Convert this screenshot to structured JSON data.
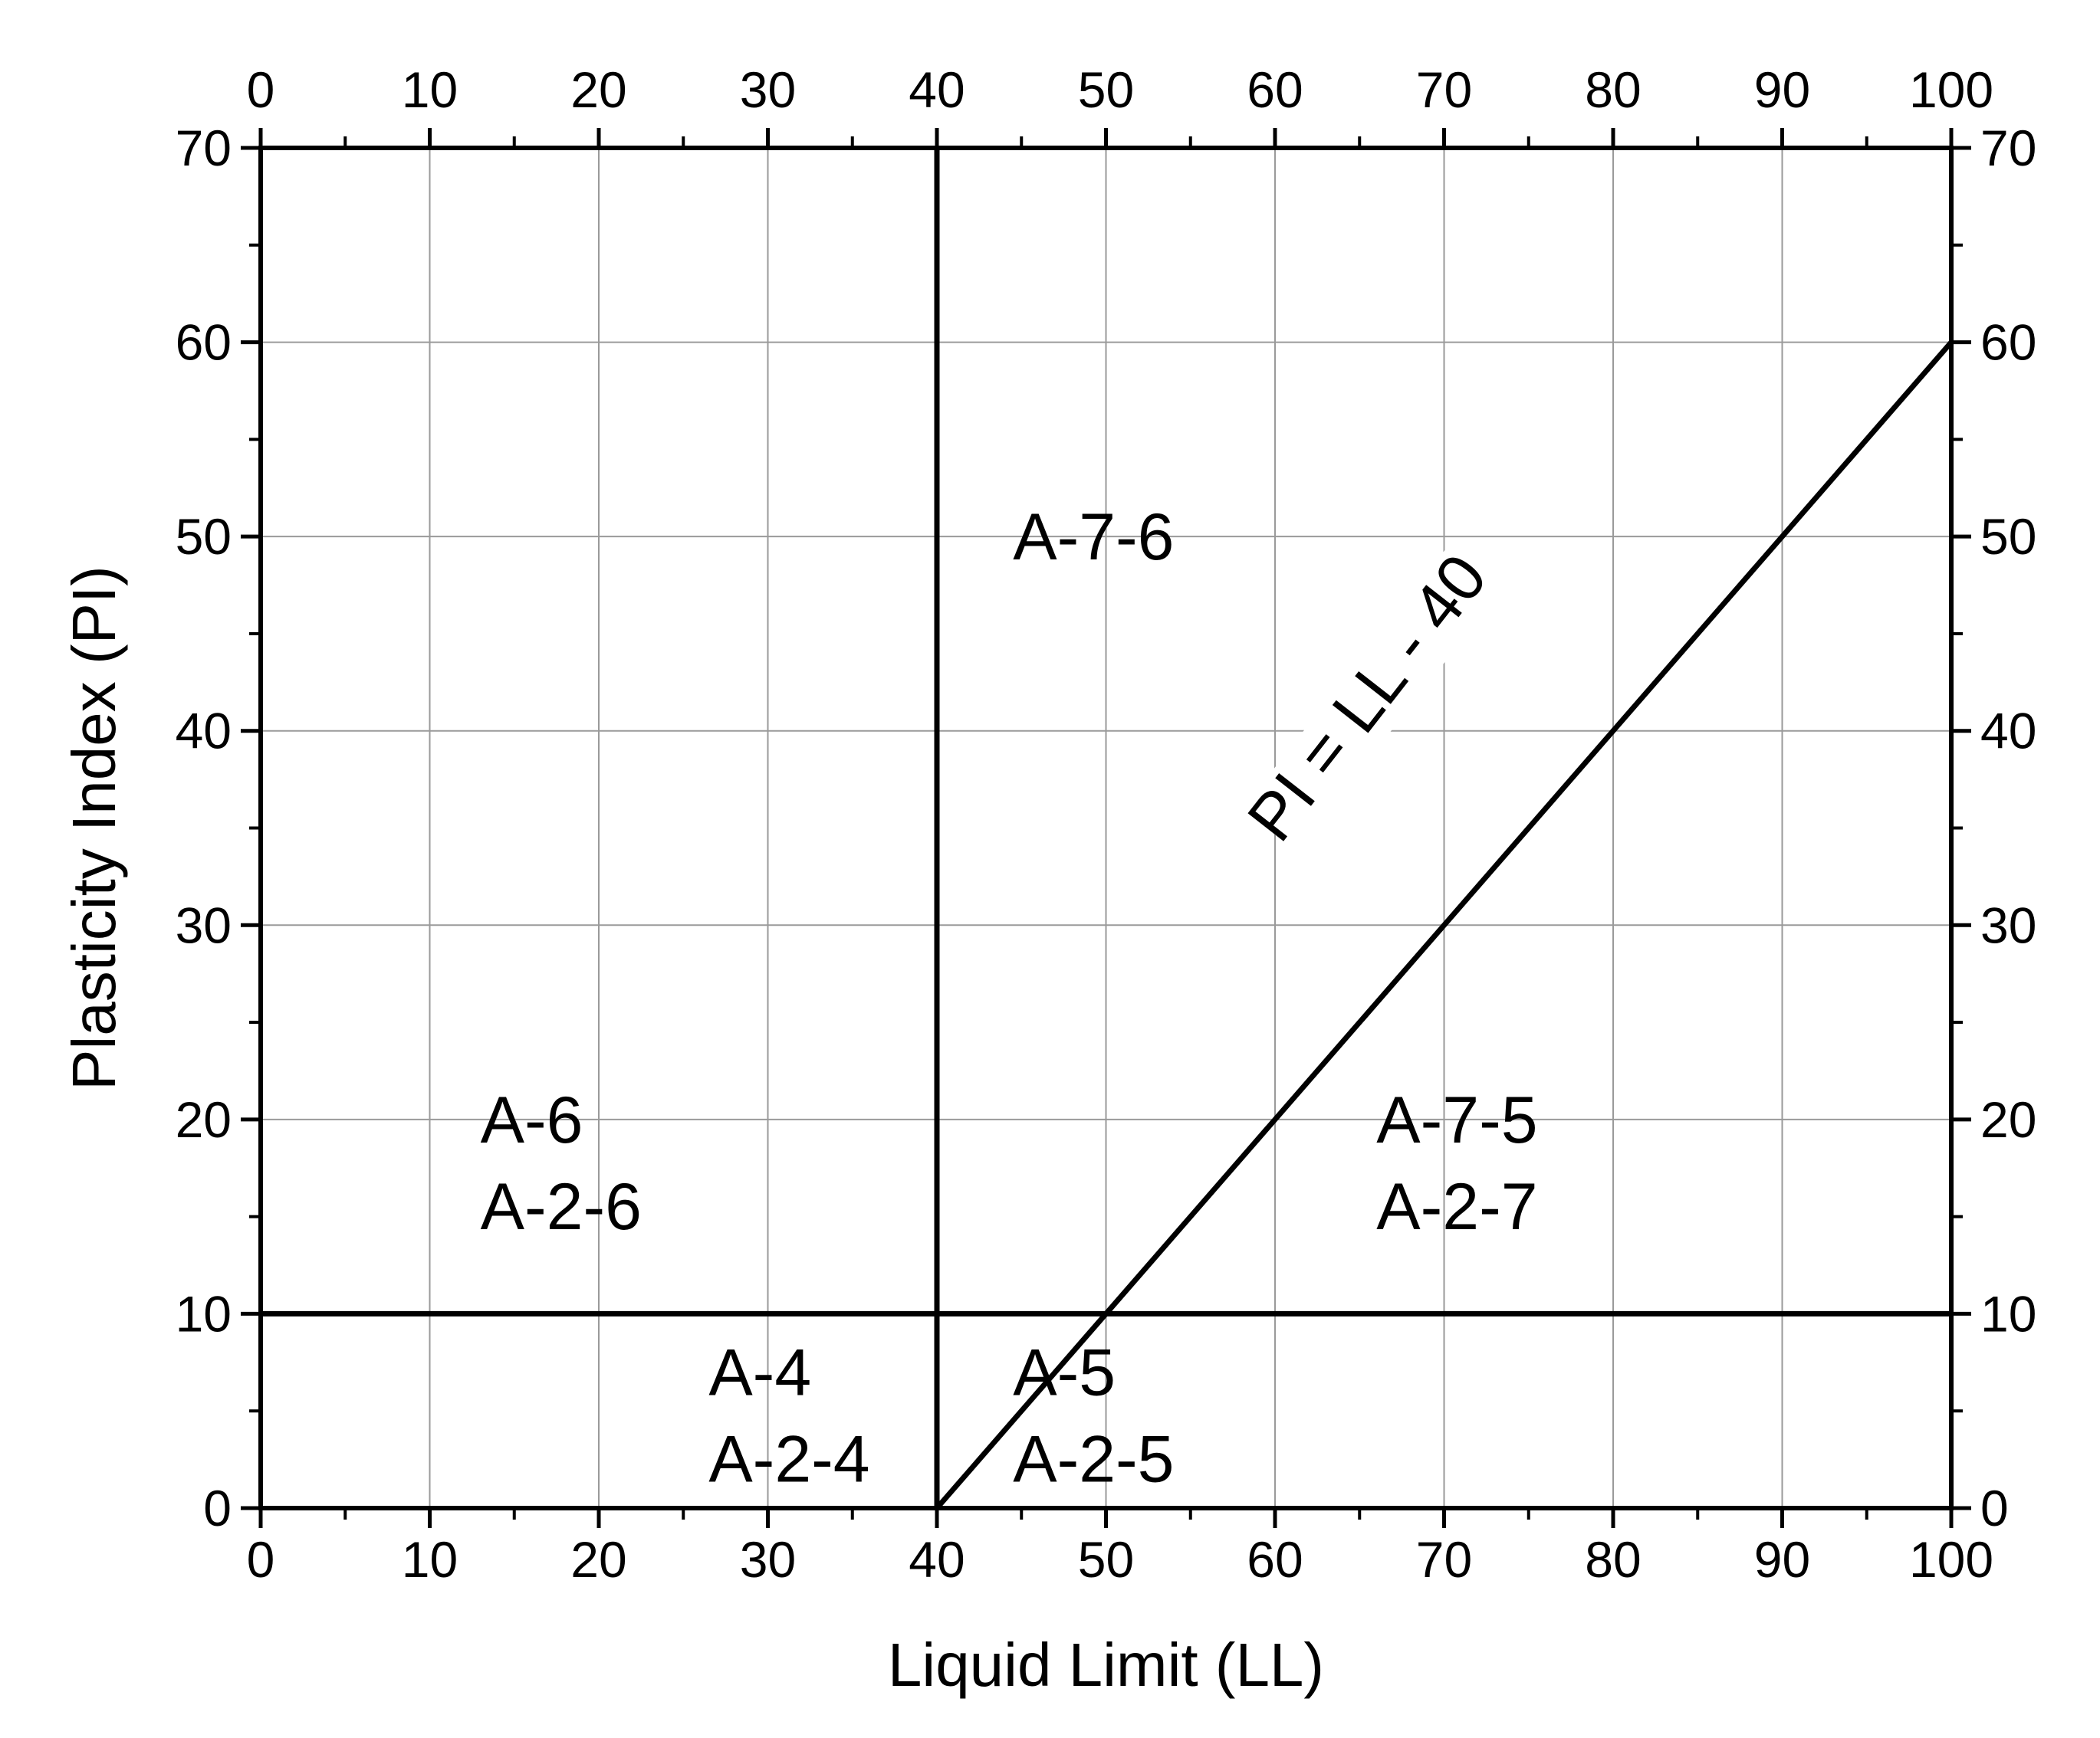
{
  "chart_data": {
    "type": "line",
    "title": "",
    "xlabel": "Liquid Limit (LL)",
    "ylabel": "Plasticity Index (PI)",
    "xlim": [
      0,
      100
    ],
    "ylim": [
      0,
      70
    ],
    "x_ticks": [
      0,
      10,
      20,
      30,
      40,
      50,
      60,
      70,
      80,
      90,
      100
    ],
    "y_ticks": [
      0,
      10,
      20,
      30,
      40,
      50,
      60,
      70
    ],
    "x_tick_labels": [
      "0",
      "10",
      "20",
      "30",
      "40",
      "50",
      "60",
      "70",
      "80",
      "90",
      "100"
    ],
    "y_tick_labels": [
      "0",
      "10",
      "20",
      "30",
      "40",
      "50",
      "60",
      "70"
    ],
    "mirror_axes": {
      "top": true,
      "right": true
    },
    "grid": true,
    "minor_ticks": {
      "x_step": 5,
      "y_step": 5
    },
    "colors": {
      "grid": "#9a9a9a",
      "axes": "#000000",
      "lines": "#000000"
    },
    "series": [
      {
        "x": [
          0,
          100
        ],
        "y": [
          10,
          10
        ]
      },
      {
        "x": [
          40,
          40
        ],
        "y": [
          0,
          70
        ]
      },
      {
        "name": "PI = LL - 40",
        "x": [
          40,
          100
        ],
        "y": [
          0,
          60
        ]
      }
    ],
    "line_label": {
      "text": "PI = LL - 40",
      "x": 66.5,
      "y": 41,
      "angle_deg": -52
    },
    "regions": [
      {
        "lines": [
          "A-6",
          "A-2-6"
        ],
        "x": 13,
        "y": 20
      },
      {
        "lines": [
          "A-4",
          "A-2-4"
        ],
        "x": 26.5,
        "y": 7
      },
      {
        "lines": [
          "A-5",
          "A-2-5"
        ],
        "x": 44.5,
        "y": 7
      },
      {
        "lines": [
          "A-7-6"
        ],
        "x": 44.5,
        "y": 50
      },
      {
        "lines": [
          "A-7-5",
          "A-2-7"
        ],
        "x": 66,
        "y": 20
      }
    ]
  }
}
